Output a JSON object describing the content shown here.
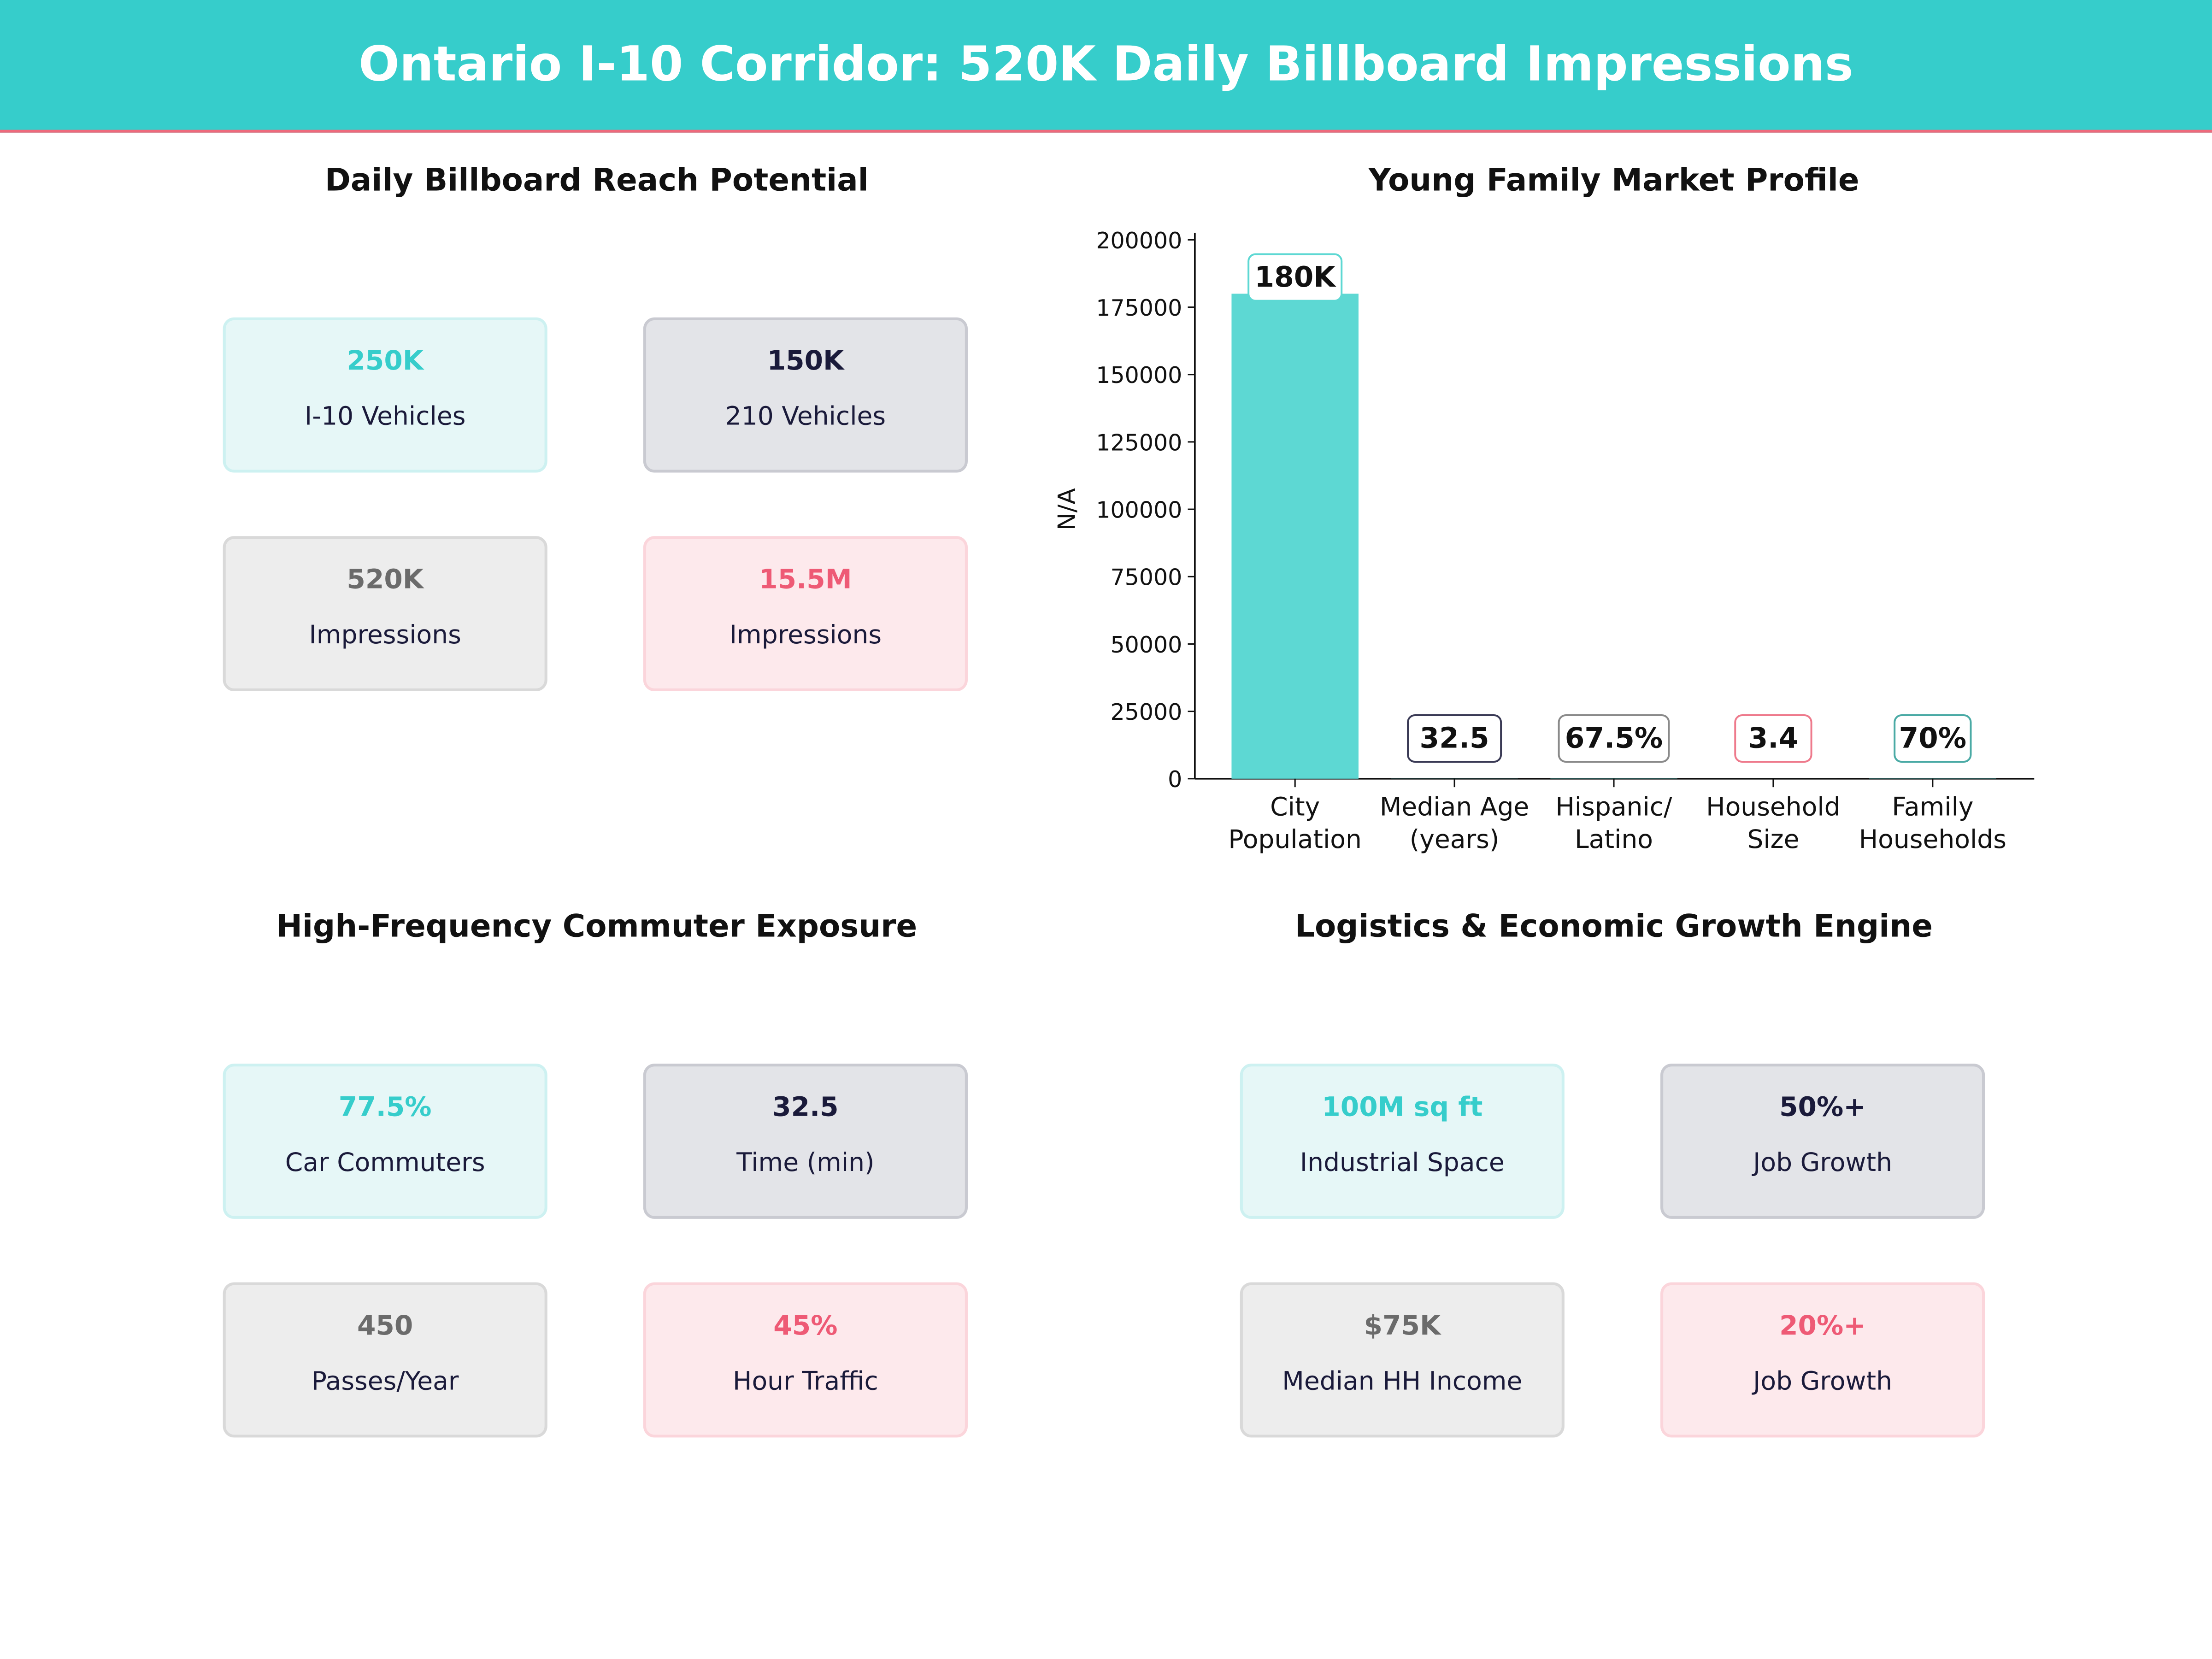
{
  "header": {
    "title": "Ontario I-10 Corridor: 520K Daily Billboard Impressions"
  },
  "panels": [
    {
      "title": "Daily Billboard Reach Potential",
      "cards": [
        {
          "value": "250K",
          "label": "I-10  Vehicles"
        },
        {
          "value": "150K",
          "label": "210 Vehicles"
        },
        {
          "value": "520K",
          "label": "Impressions"
        },
        {
          "value": "15.5M",
          "label": "Impressions"
        }
      ]
    },
    {
      "title": "High-Frequency Commuter Exposure",
      "cards": [
        {
          "value": "77.5%",
          "label": "Car Commuters"
        },
        {
          "value": "32.5",
          "label": "Time (min)"
        },
        {
          "value": "450",
          "label": "Passes/Year"
        },
        {
          "value": "45%",
          "label": "Hour Traffic"
        }
      ]
    },
    {
      "title": "Logistics & Economic Growth Engine",
      "cards": [
        {
          "value": "100M sq ft",
          "label": "Industrial Space"
        },
        {
          "value": "50%+",
          "label": "Job Growth"
        },
        {
          "value": "$75K",
          "label": "Median HH Income"
        },
        {
          "value": "20%+",
          "label": "Job Growth"
        }
      ]
    }
  ],
  "colors": {
    "teal": "#36cdcb",
    "navy": "#1a1a3a",
    "gray": "#6b6b6b",
    "pink": "#ee5a75",
    "bar": "#5dd8d3"
  },
  "chart_data": {
    "type": "bar",
    "title": "Young Family Market Profile",
    "ylabel": "N/A",
    "xlabel": "",
    "categories": [
      [
        "City",
        "Population"
      ],
      [
        "Median Age",
        "(years)"
      ],
      [
        "Hispanic/",
        "Latino"
      ],
      [
        "Household",
        "Size"
      ],
      [
        "Family",
        "Households"
      ]
    ],
    "values": [
      180000,
      32.5,
      67.5,
      3.4,
      70
    ],
    "data_labels": [
      "180K",
      "32.5",
      "67.5%",
      "3.4",
      "70%"
    ],
    "label_border_colors": [
      "#5dd8d3",
      "#3a3a55",
      "#8a8a8a",
      "#ee7a8c",
      "#4aaaa5"
    ],
    "ylim": [
      0,
      204000
    ],
    "yticks": [
      0,
      25000,
      50000,
      75000,
      100000,
      125000,
      150000,
      175000,
      200000
    ],
    "grid": false
  }
}
